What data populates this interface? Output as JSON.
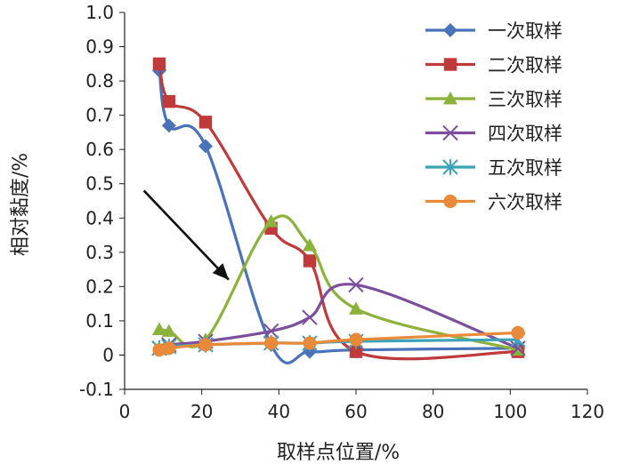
{
  "chart_data": {
    "type": "line",
    "title": "",
    "xlabel": "取样点位置/%",
    "ylabel": "相对黏度/%",
    "xlim": [
      0,
      120
    ],
    "ylim": [
      -0.1,
      1.0
    ],
    "xticks": [
      "0",
      "20",
      "40",
      "60",
      "80",
      "100",
      "120"
    ],
    "yticks": [
      "-0.1",
      "0",
      "0.1",
      "0.2",
      "0.3",
      "0.4",
      "0.5",
      "0.6",
      "0.7",
      "0.8",
      "0.9",
      "1.0"
    ],
    "grid": false,
    "legend_position": "top-right",
    "series": [
      {
        "name": "一次取样",
        "color": "#4a72b8",
        "marker": "diamond",
        "x": [
          9,
          11.5,
          21,
          38,
          48,
          60,
          102
        ],
        "y": [
          0.83,
          0.67,
          0.61,
          0.03,
          0.01,
          0.015,
          0.02
        ]
      },
      {
        "name": "二次取样",
        "color": "#c0393b",
        "marker": "square",
        "x": [
          9,
          11.5,
          21,
          38,
          48,
          60,
          102
        ],
        "y": [
          0.85,
          0.74,
          0.68,
          0.37,
          0.275,
          0.01,
          0.01
        ]
      },
      {
        "name": "三次取样",
        "color": "#8cb23c",
        "marker": "triangle",
        "x": [
          9,
          11.5,
          21,
          38,
          48,
          60,
          102
        ],
        "y": [
          0.075,
          0.07,
          0.045,
          0.39,
          0.32,
          0.135,
          0.015
        ]
      },
      {
        "name": "四次取样",
        "color": "#7c4e9e",
        "marker": "x",
        "x": [
          9,
          11.5,
          21,
          38,
          48,
          60,
          102
        ],
        "y": [
          0.02,
          0.03,
          0.04,
          0.07,
          0.11,
          0.205,
          0.02
        ]
      },
      {
        "name": "五次取样",
        "color": "#3ca3b8",
        "marker": "asterisk",
        "x": [
          9,
          11.5,
          21,
          38,
          48,
          60,
          102
        ],
        "y": [
          0.02,
          0.025,
          0.03,
          0.035,
          0.035,
          0.04,
          0.045
        ]
      },
      {
        "name": "六次取样",
        "color": "#e98a3a",
        "marker": "circle",
        "x": [
          9,
          11.5,
          21,
          38,
          48,
          60,
          102
        ],
        "y": [
          0.015,
          0.02,
          0.03,
          0.035,
          0.035,
          0.045,
          0.065
        ]
      }
    ],
    "annotations": [
      {
        "type": "arrow",
        "from": [
          5,
          0.48
        ],
        "to": [
          27,
          0.22
        ],
        "color": "#111111"
      }
    ]
  }
}
